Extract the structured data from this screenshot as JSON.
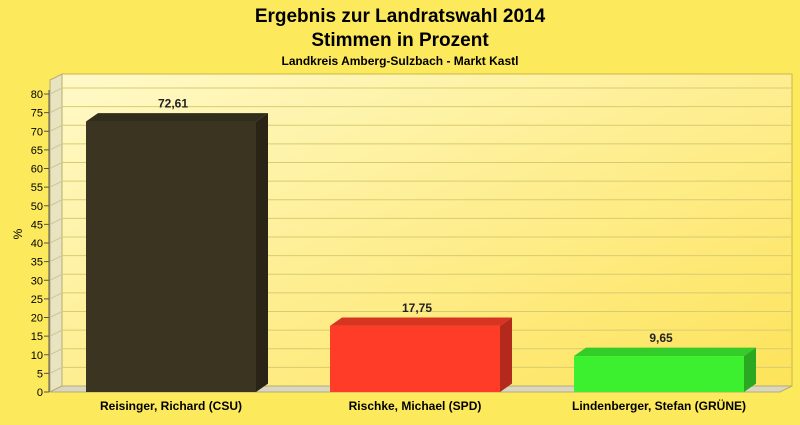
{
  "chart_data": {
    "type": "bar",
    "title": "Ergebnis zur Landratswahl 2014",
    "subtitle": "Stimmen in Prozent",
    "region": "Landkreis Amberg-Sulzbach - Markt Kastl",
    "ylabel": "%",
    "xlabel": "",
    "ylim": [
      0,
      85
    ],
    "yticks": [
      0,
      5,
      10,
      15,
      20,
      25,
      30,
      35,
      40,
      45,
      50,
      55,
      60,
      65,
      70,
      75,
      80
    ],
    "grid": true,
    "categories": [
      "Reisinger, Richard (CSU)",
      "Rischke, Michael (SPD)",
      "Lindenberger, Stefan (GRÜNE)"
    ],
    "values": [
      72.61,
      17.75,
      9.65
    ],
    "value_labels": [
      "72,61",
      "17,75",
      "9,65"
    ],
    "colors": [
      "#3a3420",
      "#ff3c28",
      "#3cf030"
    ],
    "background": "#fde95c"
  }
}
